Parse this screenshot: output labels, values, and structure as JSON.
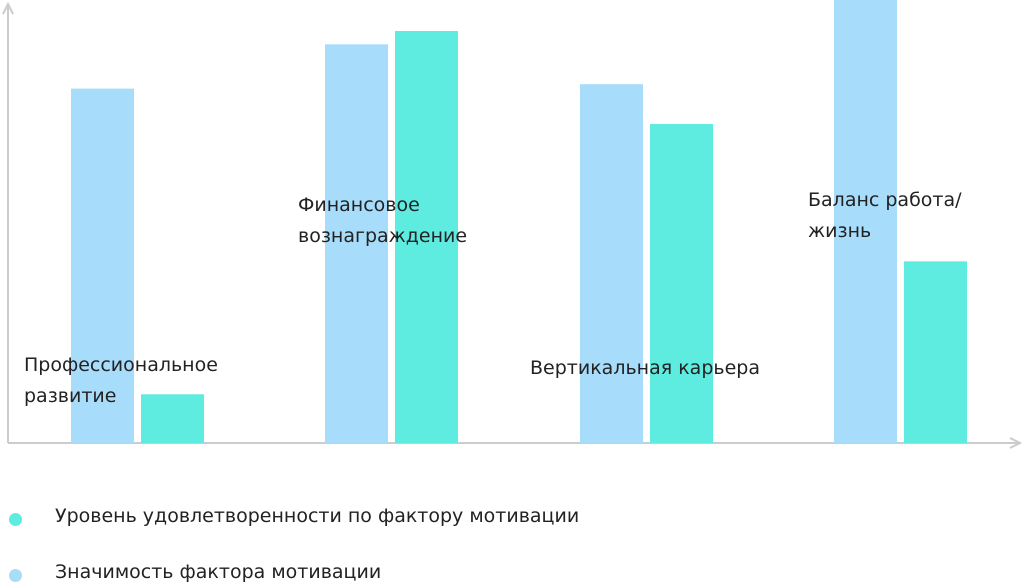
{
  "chart_data": {
    "type": "bar",
    "categories": [
      "Профессиональное развитие",
      "Финансовое вознаграждение",
      "Вертикальная карьера",
      "Баланс работа/жизнь"
    ],
    "series": [
      {
        "name": "Значимость фактора мотивации",
        "color": "#a8dcfb",
        "values": [
          80,
          90,
          81,
          100
        ]
      },
      {
        "name": "Уровень удовлетворенности по фактору мотивации",
        "color": "#5eece0",
        "values": [
          11,
          93,
          72,
          41
        ]
      }
    ],
    "ylim": [
      0,
      100
    ]
  }
}
